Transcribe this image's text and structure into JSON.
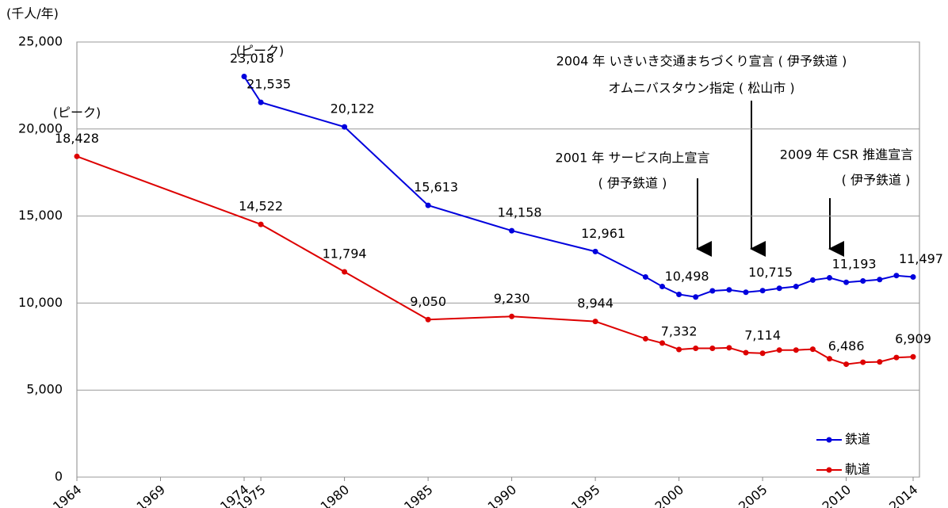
{
  "chart_data": {
    "type": "line",
    "y_label": "(千人/年)",
    "xlim": [
      1964,
      2014
    ],
    "xticks": [
      1964,
      1969,
      1974,
      1975,
      1980,
      1985,
      1990,
      1995,
      2000,
      2005,
      2010,
      2014
    ],
    "ylim": [
      0,
      25000
    ],
    "yticks": [
      0,
      {
        "value": 5000,
        "label": "5,000"
      },
      {
        "value": 10000,
        "label": "10,000"
      },
      {
        "value": 15000,
        "label": "15,000"
      },
      {
        "value": 20000,
        "label": "20,000"
      },
      {
        "value": 25000,
        "label": "25,000"
      }
    ],
    "grid": true,
    "legend": "lower right",
    "series": [
      {
        "name": "鉄道",
        "color": "#0000dd",
        "x": [
          1974,
          1975,
          1980,
          1985,
          1990,
          1995,
          1998,
          1999,
          2000,
          2001,
          2002,
          2003,
          2004,
          2005,
          2006,
          2007,
          2008,
          2009,
          2010,
          2011,
          2012,
          2013,
          2014
        ],
        "values": [
          23018,
          21535,
          20122,
          15613,
          14158,
          12961,
          11500,
          10950,
          10498,
          10350,
          10700,
          10760,
          10620,
          10715,
          10850,
          10950,
          11320,
          11450,
          11193,
          11270,
          11350,
          11580,
          11497
        ],
        "value_labels": [
          "23,018",
          "21,535",
          "20,122",
          "15,613",
          "14,158",
          "12,961",
          null,
          null,
          "10,498",
          null,
          null,
          null,
          null,
          "10,715",
          null,
          null,
          null,
          null,
          "11,193",
          null,
          null,
          null,
          "11,497"
        ]
      },
      {
        "name": "軌道",
        "color": "#dd0000",
        "x": [
          1964,
          1975,
          1980,
          1985,
          1990,
          1995,
          1998,
          1999,
          2000,
          2001,
          2002,
          2003,
          2004,
          2005,
          2006,
          2007,
          2008,
          2009,
          2010,
          2011,
          2012,
          2013,
          2014
        ],
        "values": [
          18428,
          14522,
          11794,
          9050,
          9230,
          8944,
          7950,
          7700,
          7332,
          7400,
          7400,
          7430,
          7150,
          7114,
          7300,
          7300,
          7350,
          6800,
          6486,
          6600,
          6620,
          6870,
          6909
        ],
        "value_labels": [
          "18,428",
          "14,522",
          "11,794",
          "9,050",
          "9,230",
          "8,944",
          null,
          null,
          "7,332",
          null,
          null,
          null,
          null,
          "7,114",
          null,
          null,
          null,
          null,
          "6,486",
          null,
          null,
          null,
          "6,909"
        ]
      }
    ],
    "annotations": [
      "(ピーク)",
      "(ピーク)",
      "2004 年 いきいき交通まちづくり宣言 ( 伊予鉄道 )",
      "オムニバスタウン指定 ( 松山市 )",
      "2001 年 サービス向上宣言",
      "( 伊予鉄道 )",
      "2009 年 CSR 推進宣言",
      "( 伊予鉄道 )"
    ]
  }
}
